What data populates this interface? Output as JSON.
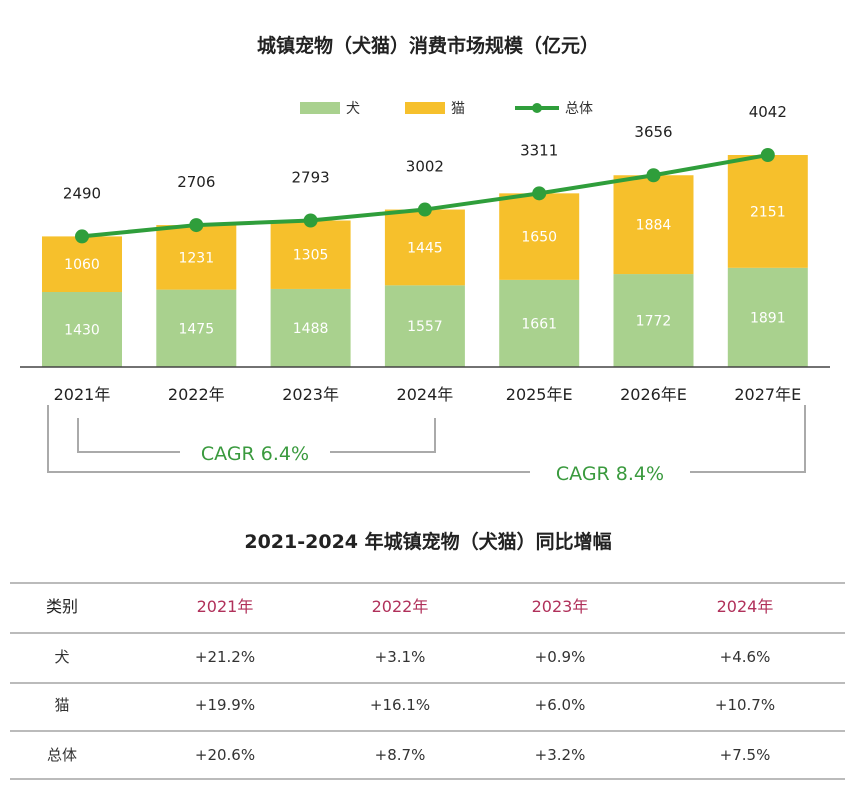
{
  "chart_data": {
    "type": "bar",
    "title": "城镇宠物（犬猫）消费市场规模（亿元）",
    "categories": [
      "2021年",
      "2022年",
      "2023年",
      "2024年",
      "2025年E",
      "2026年E",
      "2027年E"
    ],
    "series": [
      {
        "name": "犬",
        "kind": "stacked-bar",
        "color": "#a9d18e",
        "values": [
          1430,
          1475,
          1488,
          1557,
          1661,
          1772,
          1891
        ]
      },
      {
        "name": "猫",
        "kind": "stacked-bar",
        "color": "#f6c02c",
        "values": [
          1060,
          1231,
          1305,
          1445,
          1650,
          1884,
          2151
        ]
      },
      {
        "name": "总体",
        "kind": "line",
        "color": "#2f9e3b",
        "values": [
          2490,
          2706,
          2793,
          3002,
          3311,
          3656,
          4042
        ]
      }
    ],
    "legend_position": "top",
    "annotations": [
      {
        "text": "CAGR 6.4%",
        "from": "2021年",
        "to": "2024年"
      },
      {
        "text": "CAGR 8.4%",
        "from": "2021年",
        "to": "2027年E"
      }
    ],
    "grid": false
  },
  "table": {
    "title": "2021-2024 年城镇宠物（犬猫）同比增幅",
    "headers": [
      "类别",
      "2021年",
      "2022年",
      "2023年",
      "2024年"
    ],
    "rows": [
      [
        "犬",
        "+21.2%",
        "+3.1%",
        "+0.9%",
        "+4.6%"
      ],
      [
        "猫",
        "+19.9%",
        "+16.1%",
        "+6.0%",
        "+10.7%"
      ],
      [
        "总体",
        "+20.6%",
        "+8.7%",
        "+3.2%",
        "+7.5%"
      ]
    ],
    "header_color": "#b0305a"
  }
}
